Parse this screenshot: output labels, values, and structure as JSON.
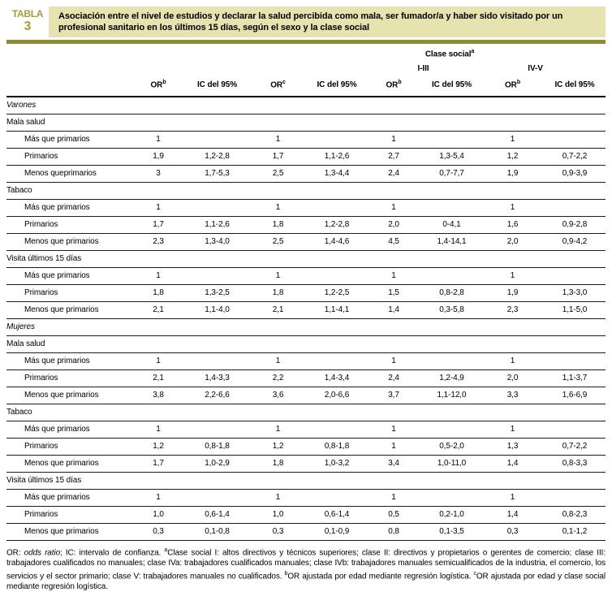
{
  "header": {
    "badge_line1": "TABLA",
    "badge_line2": "3",
    "title": "Asociación entre el nivel de estudios y declarar la salud percibida como mala, ser fumador/a y haber sido visitado por un profesional sanitario en los últimos 15 días, según el sexo y la clase social",
    "accent_bg": "#e6e3b0",
    "accent_gold": "#a89a3a",
    "accent_bar": "#8f8c32"
  },
  "table": {
    "col_headers": {
      "clase_social": "Clase social",
      "clase_social_sup": "a",
      "group1": "I-III",
      "group2": "IV-V",
      "cols": [
        {
          "label": "OR",
          "sup": "b"
        },
        {
          "label": "IC del 95%",
          "sup": ""
        },
        {
          "label": "OR",
          "sup": "c"
        },
        {
          "label": "IC del 95%",
          "sup": ""
        },
        {
          "label": "OR",
          "sup": "b"
        },
        {
          "label": "IC del 95%",
          "sup": ""
        },
        {
          "label": "OR",
          "sup": "b"
        },
        {
          "label": "IC del 95%",
          "sup": ""
        }
      ]
    },
    "rows": [
      {
        "type": "gender",
        "label": "Varones"
      },
      {
        "type": "section",
        "label": "Mala salud"
      },
      {
        "type": "data",
        "label": "Más que primarios",
        "cells": [
          "1",
          "",
          "1",
          "",
          "1",
          "",
          "1",
          ""
        ]
      },
      {
        "type": "data",
        "label": "Primarios",
        "cells": [
          "1,9",
          "1,2-2,8",
          "1,7",
          "1,1-2,6",
          "2,7",
          "1,3-5,4",
          "1,2",
          "0,7-2,2"
        ]
      },
      {
        "type": "data",
        "label": "Menos queprimarios",
        "cells": [
          "3",
          "1,7-5,3",
          "2,5",
          "1,3-4,4",
          "2,4",
          "0,7-7,7",
          "1,9",
          "0,9-3,9"
        ]
      },
      {
        "type": "section",
        "label": "Tabaco"
      },
      {
        "type": "data",
        "label": "Más que primarios",
        "cells": [
          "1",
          "",
          "1",
          "",
          "1",
          "",
          "1",
          ""
        ]
      },
      {
        "type": "data",
        "label": "Primarios",
        "cells": [
          "1,7",
          "1,1-2,6",
          "1,8",
          "1,2-2,8",
          "2,0",
          "0-4,1",
          "1,6",
          "0,9-2,8"
        ]
      },
      {
        "type": "data",
        "label": "Menos que primarios",
        "cells": [
          "2,3",
          "1,3-4,0",
          "2,5",
          "1,4-4,6",
          "4,5",
          "1,4-14,1",
          "2,0",
          "0,9-4,2"
        ]
      },
      {
        "type": "section",
        "label": "Visita últimos 15 días"
      },
      {
        "type": "data",
        "label": "Más que primarios",
        "cells": [
          "1",
          "",
          "1",
          "",
          "1",
          "",
          "1",
          ""
        ]
      },
      {
        "type": "data",
        "label": "Primarios",
        "cells": [
          "1,8",
          "1,3-2,5",
          "1,8",
          "1,2-2,5",
          "1,5",
          "0,8-2,8",
          "1,9",
          "1,3-3,0"
        ]
      },
      {
        "type": "data",
        "label": "Menos que primarios",
        "cells": [
          "2,1",
          "1,1-4,0",
          "2,1",
          "1,1-4,1",
          "1,4",
          "0,3-5,8",
          "2,3",
          "1,1-5,0"
        ]
      },
      {
        "type": "gender",
        "label": "Mujeres"
      },
      {
        "type": "section",
        "label": "Mala salud"
      },
      {
        "type": "data",
        "label": "Más que primarios",
        "cells": [
          "1",
          "",
          "1",
          "",
          "1",
          "",
          "1",
          ""
        ]
      },
      {
        "type": "data",
        "label": "Primarios",
        "cells": [
          "2,1",
          "1,4-3,3",
          "2,2",
          "1,4-3,4",
          "2,4",
          "1,2-4,9",
          "2,0",
          "1,1-3,7"
        ]
      },
      {
        "type": "data",
        "label": "Menos que primarios",
        "cells": [
          "3,8",
          "2,2-6,6",
          "3,6",
          "2,0-6,6",
          "3,7",
          "1,1-12,0",
          "3,3",
          "1,6-6,9"
        ]
      },
      {
        "type": "section",
        "label": "Tabaco"
      },
      {
        "type": "data",
        "label": "Más que primarios",
        "cells": [
          "1",
          "",
          "1",
          "",
          "1",
          "",
          "1",
          ""
        ]
      },
      {
        "type": "data",
        "label": "Primarios",
        "cells": [
          "1,2",
          "0,8-1,8",
          "1,2",
          "0,8-1,8",
          "1",
          "0,5-2,0",
          "1,3",
          "0,7-2,2"
        ]
      },
      {
        "type": "data",
        "label": "Menos que primarios",
        "cells": [
          "1,7",
          "1,0-2,9",
          "1,8",
          "1,0-3,2",
          "3,4",
          "1,0-11,0",
          "1,4",
          "0,8-3,3"
        ]
      },
      {
        "type": "section",
        "label": "Visita últimos 15 días"
      },
      {
        "type": "data",
        "label": "Más que primarios",
        "cells": [
          "1",
          "",
          "1",
          "",
          "1",
          "",
          "1",
          ""
        ]
      },
      {
        "type": "data",
        "label": "Primarios",
        "cells": [
          "1,0",
          "0,6-1,4",
          "1,0",
          "0,6-1,4",
          "0,5",
          "0,2-1,0",
          "1,4",
          "0,8-2,3"
        ]
      },
      {
        "type": "data",
        "label": "Menos que primarios",
        "cells": [
          "0,3",
          "0,1-0,8",
          "0,3",
          "0,1-0,9",
          "0,8",
          "0,1-3,5",
          "0,3",
          "0,1-1,2"
        ]
      }
    ]
  },
  "footnote": {
    "segments": [
      {
        "t": "OR: "
      },
      {
        "t": "odds ratio",
        "italic": true
      },
      {
        "t": "; IC: intervalo de confianza. "
      },
      {
        "t": "a",
        "sup": true
      },
      {
        "t": "Clase social I: altos directivos y técnicos superiores; clase II: directivos y propietarios o gerentes de comercio; clase III: trabajadores cualificados no manuales; clase IVa: trabajadores cualificados manuales; clase IVb: trabajadores manuales semicualificados de la industria, el comercio, los servicios y el sector primario; clase V: trabajadores manuales no cualificados. "
      },
      {
        "t": "b",
        "sup": true
      },
      {
        "t": "OR ajustada por edad mediante regresión logística. "
      },
      {
        "t": "c",
        "sup": true
      },
      {
        "t": "OR ajustada por edad y clase social mediante regresión logística."
      }
    ]
  }
}
